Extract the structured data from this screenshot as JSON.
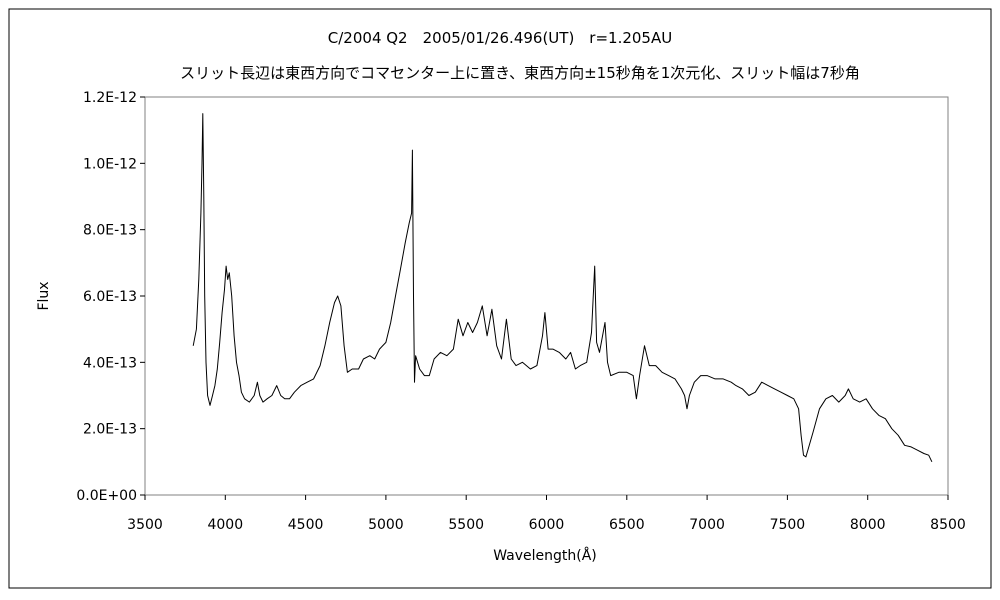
{
  "chart_data": {
    "type": "line",
    "title": "C/2004 Q2　2005/01/26.496(UT)　r=1.205AU",
    "subtitle": "スリット長辺は東西方向でコマセンター上に置き、東西方向±15秒角を1次元化、スリット幅は7秒角",
    "xlabel": "Wavelength(Å)",
    "ylabel": "Flux",
    "xlim": [
      3500,
      8500
    ],
    "ylim": [
      0,
      1.2e-12
    ],
    "x_ticks": [
      3500,
      4000,
      4500,
      5000,
      5500,
      6000,
      6500,
      7000,
      7500,
      8000,
      8500
    ],
    "x_tick_labels": [
      "3500",
      "4000",
      "4500",
      "5000",
      "5500",
      "6000",
      "6500",
      "7000",
      "7500",
      "8000",
      "8500"
    ],
    "y_ticks": [
      0,
      2e-13,
      4e-13,
      6e-13,
      8e-13,
      1e-12,
      1.2e-12
    ],
    "y_tick_labels": [
      "0.0E+00",
      "2.0E-13",
      "4.0E-13",
      "6.0E-13",
      "8.0E-13",
      "1.0E-12",
      "1.2E-12"
    ],
    "grid": false,
    "legend": "none",
    "series": [
      {
        "color": "#000000",
        "points": [
          [
            3800,
            4.5e-13
          ],
          [
            3820,
            5e-13
          ],
          [
            3835,
            6.5e-13
          ],
          [
            3848,
            8.5e-13
          ],
          [
            3855,
            1e-12
          ],
          [
            3860,
            1.15e-12
          ],
          [
            3866,
            9e-13
          ],
          [
            3872,
            6e-13
          ],
          [
            3880,
            4e-13
          ],
          [
            3890,
            3e-13
          ],
          [
            3905,
            2.7e-13
          ],
          [
            3920,
            3e-13
          ],
          [
            3935,
            3.3e-13
          ],
          [
            3950,
            3.8e-13
          ],
          [
            3965,
            4.6e-13
          ],
          [
            3980,
            5.5e-13
          ],
          [
            3995,
            6.2e-13
          ],
          [
            4005,
            6.9e-13
          ],
          [
            4015,
            6.5e-13
          ],
          [
            4025,
            6.7e-13
          ],
          [
            4040,
            6e-13
          ],
          [
            4055,
            4.8e-13
          ],
          [
            4070,
            4e-13
          ],
          [
            4085,
            3.6e-13
          ],
          [
            4100,
            3.1e-13
          ],
          [
            4120,
            2.9e-13
          ],
          [
            4150,
            2.8e-13
          ],
          [
            4180,
            3e-13
          ],
          [
            4200,
            3.4e-13
          ],
          [
            4215,
            3e-13
          ],
          [
            4235,
            2.8e-13
          ],
          [
            4260,
            2.9e-13
          ],
          [
            4290,
            3e-13
          ],
          [
            4320,
            3.3e-13
          ],
          [
            4345,
            3e-13
          ],
          [
            4370,
            2.9e-13
          ],
          [
            4400,
            2.9e-13
          ],
          [
            4430,
            3.1e-13
          ],
          [
            4470,
            3.3e-13
          ],
          [
            4510,
            3.4e-13
          ],
          [
            4550,
            3.5e-13
          ],
          [
            4590,
            3.9e-13
          ],
          [
            4620,
            4.5e-13
          ],
          [
            4650,
            5.2e-13
          ],
          [
            4680,
            5.8e-13
          ],
          [
            4700,
            6e-13
          ],
          [
            4720,
            5.7e-13
          ],
          [
            4740,
            4.5e-13
          ],
          [
            4760,
            3.7e-13
          ],
          [
            4790,
            3.8e-13
          ],
          [
            4830,
            3.8e-13
          ],
          [
            4860,
            4.1e-13
          ],
          [
            4900,
            4.2e-13
          ],
          [
            4930,
            4.1e-13
          ],
          [
            4960,
            4.4e-13
          ],
          [
            5000,
            4.6e-13
          ],
          [
            5030,
            5.2e-13
          ],
          [
            5060,
            6e-13
          ],
          [
            5090,
            6.8e-13
          ],
          [
            5120,
            7.6e-13
          ],
          [
            5145,
            8.2e-13
          ],
          [
            5160,
            8.5e-13
          ],
          [
            5165,
            1.04e-12
          ],
          [
            5172,
            6e-13
          ],
          [
            5178,
            3.4e-13
          ],
          [
            5185,
            4.2e-13
          ],
          [
            5210,
            3.8e-13
          ],
          [
            5240,
            3.6e-13
          ],
          [
            5270,
            3.6e-13
          ],
          [
            5300,
            4.1e-13
          ],
          [
            5340,
            4.3e-13
          ],
          [
            5380,
            4.2e-13
          ],
          [
            5420,
            4.4e-13
          ],
          [
            5450,
            5.3e-13
          ],
          [
            5480,
            4.8e-13
          ],
          [
            5510,
            5.2e-13
          ],
          [
            5540,
            4.9e-13
          ],
          [
            5570,
            5.2e-13
          ],
          [
            5600,
            5.7e-13
          ],
          [
            5630,
            4.8e-13
          ],
          [
            5660,
            5.6e-13
          ],
          [
            5690,
            4.5e-13
          ],
          [
            5720,
            4.1e-13
          ],
          [
            5750,
            5.3e-13
          ],
          [
            5780,
            4.1e-13
          ],
          [
            5810,
            3.9e-13
          ],
          [
            5850,
            4e-13
          ],
          [
            5900,
            3.8e-13
          ],
          [
            5940,
            3.9e-13
          ],
          [
            5975,
            4.8e-13
          ],
          [
            5990,
            5.5e-13
          ],
          [
            6010,
            4.4e-13
          ],
          [
            6040,
            4.4e-13
          ],
          [
            6080,
            4.3e-13
          ],
          [
            6120,
            4.1e-13
          ],
          [
            6150,
            4.3e-13
          ],
          [
            6180,
            3.8e-13
          ],
          [
            6210,
            3.9e-13
          ],
          [
            6250,
            4e-13
          ],
          [
            6280,
            4.9e-13
          ],
          [
            6300,
            6.9e-13
          ],
          [
            6312,
            4.6e-13
          ],
          [
            6330,
            4.3e-13
          ],
          [
            6364,
            5.2e-13
          ],
          [
            6380,
            4e-13
          ],
          [
            6400,
            3.6e-13
          ],
          [
            6450,
            3.7e-13
          ],
          [
            6500,
            3.7e-13
          ],
          [
            6540,
            3.6e-13
          ],
          [
            6560,
            2.9e-13
          ],
          [
            6580,
            3.6e-13
          ],
          [
            6610,
            4.5e-13
          ],
          [
            6640,
            3.9e-13
          ],
          [
            6680,
            3.9e-13
          ],
          [
            6720,
            3.7e-13
          ],
          [
            6760,
            3.6e-13
          ],
          [
            6800,
            3.5e-13
          ],
          [
            6840,
            3.2e-13
          ],
          [
            6860,
            3e-13
          ],
          [
            6875,
            2.6e-13
          ],
          [
            6890,
            3e-13
          ],
          [
            6920,
            3.4e-13
          ],
          [
            6960,
            3.6e-13
          ],
          [
            7000,
            3.6e-13
          ],
          [
            7050,
            3.5e-13
          ],
          [
            7100,
            3.5e-13
          ],
          [
            7150,
            3.4e-13
          ],
          [
            7180,
            3.3e-13
          ],
          [
            7220,
            3.2e-13
          ],
          [
            7260,
            3e-13
          ],
          [
            7300,
            3.1e-13
          ],
          [
            7340,
            3.4e-13
          ],
          [
            7380,
            3.3e-13
          ],
          [
            7420,
            3.2e-13
          ],
          [
            7460,
            3.1e-13
          ],
          [
            7500,
            3e-13
          ],
          [
            7540,
            2.9e-13
          ],
          [
            7570,
            2.6e-13
          ],
          [
            7585,
            1.8e-13
          ],
          [
            7600,
            1.2e-13
          ],
          [
            7615,
            1.15e-13
          ],
          [
            7630,
            1.4e-13
          ],
          [
            7660,
            1.9e-13
          ],
          [
            7700,
            2.6e-13
          ],
          [
            7740,
            2.9e-13
          ],
          [
            7780,
            3e-13
          ],
          [
            7820,
            2.8e-13
          ],
          [
            7860,
            3e-13
          ],
          [
            7880,
            3.2e-13
          ],
          [
            7910,
            2.9e-13
          ],
          [
            7950,
            2.8e-13
          ],
          [
            7990,
            2.9e-13
          ],
          [
            8030,
            2.6e-13
          ],
          [
            8070,
            2.4e-13
          ],
          [
            8110,
            2.3e-13
          ],
          [
            8150,
            2e-13
          ],
          [
            8190,
            1.8e-13
          ],
          [
            8230,
            1.5e-13
          ],
          [
            8270,
            1.45e-13
          ],
          [
            8310,
            1.35e-13
          ],
          [
            8350,
            1.25e-13
          ],
          [
            8380,
            1.2e-13
          ],
          [
            8400,
            1e-13
          ]
        ]
      }
    ]
  }
}
